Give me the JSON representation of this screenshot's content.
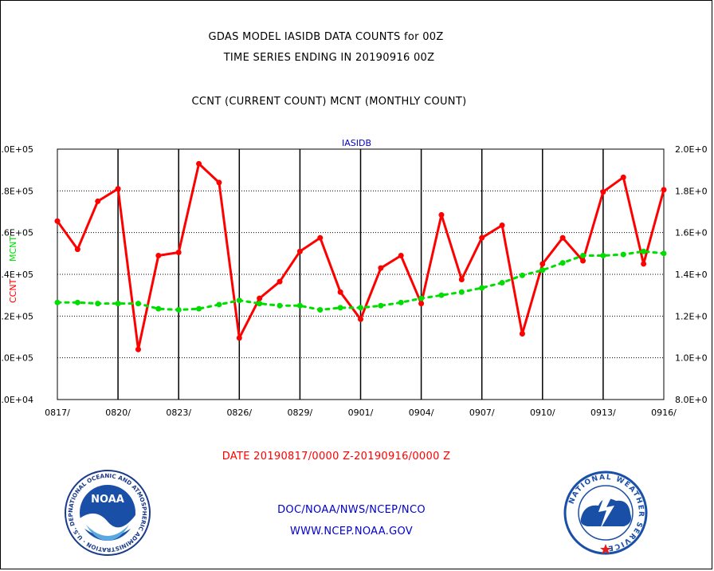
{
  "header": {
    "title_line1": "GDAS MODEL IASIDB DATA COUNTS for 00Z",
    "title_line2": "TIME SERIES ENDING IN 20190916 00Z",
    "title_line3": "CCNT (CURRENT COUNT) MCNT (MONTHLY COUNT)"
  },
  "footer": {
    "date_range": "DATE 20190817/0000 Z-20190916/0000 Z",
    "org_line": "DOC/NOAA/NWS/NCEP/NCO",
    "url_line": "WWW.NCEP.NOAA.GOV",
    "noaa_logo_text": "NOAA",
    "noaa_ring_text": "NATIONAL OCEANIC AND ATMOSPHERIC ADMINISTRATION · U.S. DEPARTMENT OF COMMERCE ·",
    "nws_ring_text": "NATIONAL WEATHER SERVICE"
  },
  "colors": {
    "ccnt": "#ff0000",
    "mcnt": "#00dd00",
    "plot_label": "#0000cc",
    "footer_links": "#0000cc",
    "date_text": "#ff0000"
  },
  "chart_data": {
    "type": "line",
    "title": "IASIDB",
    "left_axis_label_ccnt": "CCNT",
    "left_axis_label_mcnt": "MCNT",
    "left_yticks": [
      ".0E+04",
      ".0E+05",
      ".2E+05",
      ".4E+05",
      ".6E+05",
      ".8E+05",
      ".0E+05"
    ],
    "right_yticks": [
      "8.0E+0",
      "1.0E+0",
      "1.2E+0",
      "1.4E+0",
      "1.6E+0",
      "1.8E+0",
      "2.0E+0"
    ],
    "ylim": [
      0.8,
      2.0
    ],
    "xticks": [
      "0817/",
      "0820/",
      "0823/",
      "0826/",
      "0829/",
      "0901/",
      "0904/",
      "0907/",
      "0910/",
      "0913/",
      "0916/"
    ],
    "x": [
      "0817",
      "0818",
      "0819",
      "0820",
      "0821",
      "0822",
      "0823",
      "0824",
      "0825",
      "0826",
      "0827",
      "0828",
      "0829",
      "0830",
      "0831",
      "0901",
      "0902",
      "0903",
      "0904",
      "0905",
      "0906",
      "0907",
      "0908",
      "0909",
      "0910",
      "0911",
      "0912",
      "0913",
      "0914",
      "0915",
      "0916"
    ],
    "series": [
      {
        "name": "CCNT",
        "values": [
          1.655,
          1.52,
          1.75,
          1.81,
          1.04,
          1.49,
          1.505,
          1.93,
          1.84,
          1.095,
          1.285,
          1.365,
          1.51,
          1.575,
          1.315,
          1.185,
          1.43,
          1.49,
          1.26,
          1.685,
          1.375,
          1.575,
          1.635,
          1.115,
          1.45,
          1.575,
          1.465,
          1.795,
          1.865,
          1.45,
          1.805
        ]
      },
      {
        "name": "MCNT",
        "values": [
          1.265,
          1.265,
          1.26,
          1.26,
          1.26,
          1.235,
          1.23,
          1.235,
          1.255,
          1.275,
          1.26,
          1.25,
          1.25,
          1.23,
          1.24,
          1.24,
          1.25,
          1.265,
          1.285,
          1.3,
          1.315,
          1.335,
          1.36,
          1.395,
          1.42,
          1.455,
          1.49,
          1.49,
          1.495,
          1.51,
          1.5
        ]
      }
    ]
  }
}
